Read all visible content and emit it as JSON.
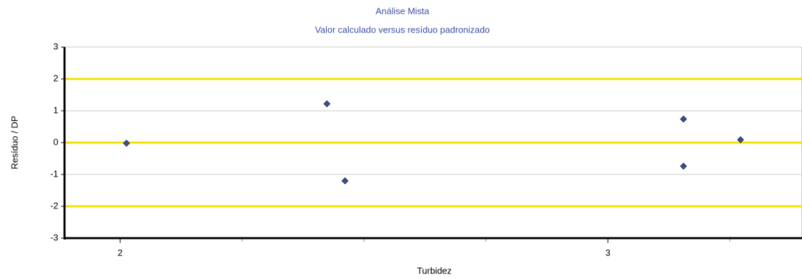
{
  "chart_data": {
    "type": "scatter",
    "title": "Análise Mista",
    "subtitle": "Valor calculado versus resíduo padronizado",
    "x_label": "Turbidez",
    "y_label": "Resíduo / DP",
    "x": [
      2.013,
      2.424,
      2.461,
      3.155,
      3.155,
      3.272
    ],
    "values": [
      -0.02,
      1.22,
      -1.2,
      0.74,
      -0.74,
      0.09
    ],
    "color": "#3b4f8c",
    "xlim": [
      1.886,
      3.398
    ],
    "ylim": [
      -3,
      3
    ],
    "xticks": [
      2,
      3
    ],
    "xminor_ticks": [
      2.25,
      2.5,
      2.75,
      3.25
    ],
    "yticks": [
      -3,
      -2,
      -1,
      0,
      1,
      2,
      3
    ],
    "grid": true,
    "reference_lines": [
      2,
      0,
      -2
    ],
    "reference_color": "#f0e000"
  }
}
